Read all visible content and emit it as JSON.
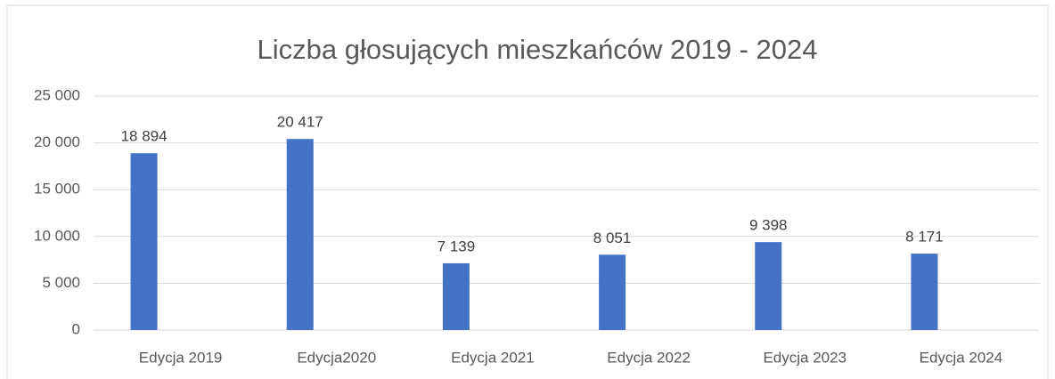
{
  "chart_data": {
    "type": "bar",
    "title": "Liczba głosujących mieszkańców 2019 - 2024",
    "categories": [
      "Edycja 2019",
      "Edycja2020",
      "Edycja 2021",
      "Edycja 2022",
      "Edycja 2023",
      "Edycja 2024"
    ],
    "values": [
      18894,
      20417,
      7139,
      8051,
      9398,
      8171
    ],
    "value_labels": [
      "18 894",
      "20 417",
      "7 139",
      "8 051",
      "9 398",
      "8 171"
    ],
    "color": "#4472c4",
    "ylim": [
      0,
      25000
    ],
    "yticks": [
      0,
      {
        "value": 5000,
        "label": "5 000"
      },
      {
        "value": 10000,
        "label": "10 000"
      },
      {
        "value": 15000,
        "label": "15 000"
      },
      {
        "value": 20000,
        "label": "20 000"
      },
      {
        "value": 25000,
        "label": "25 000"
      }
    ],
    "grid": true
  }
}
